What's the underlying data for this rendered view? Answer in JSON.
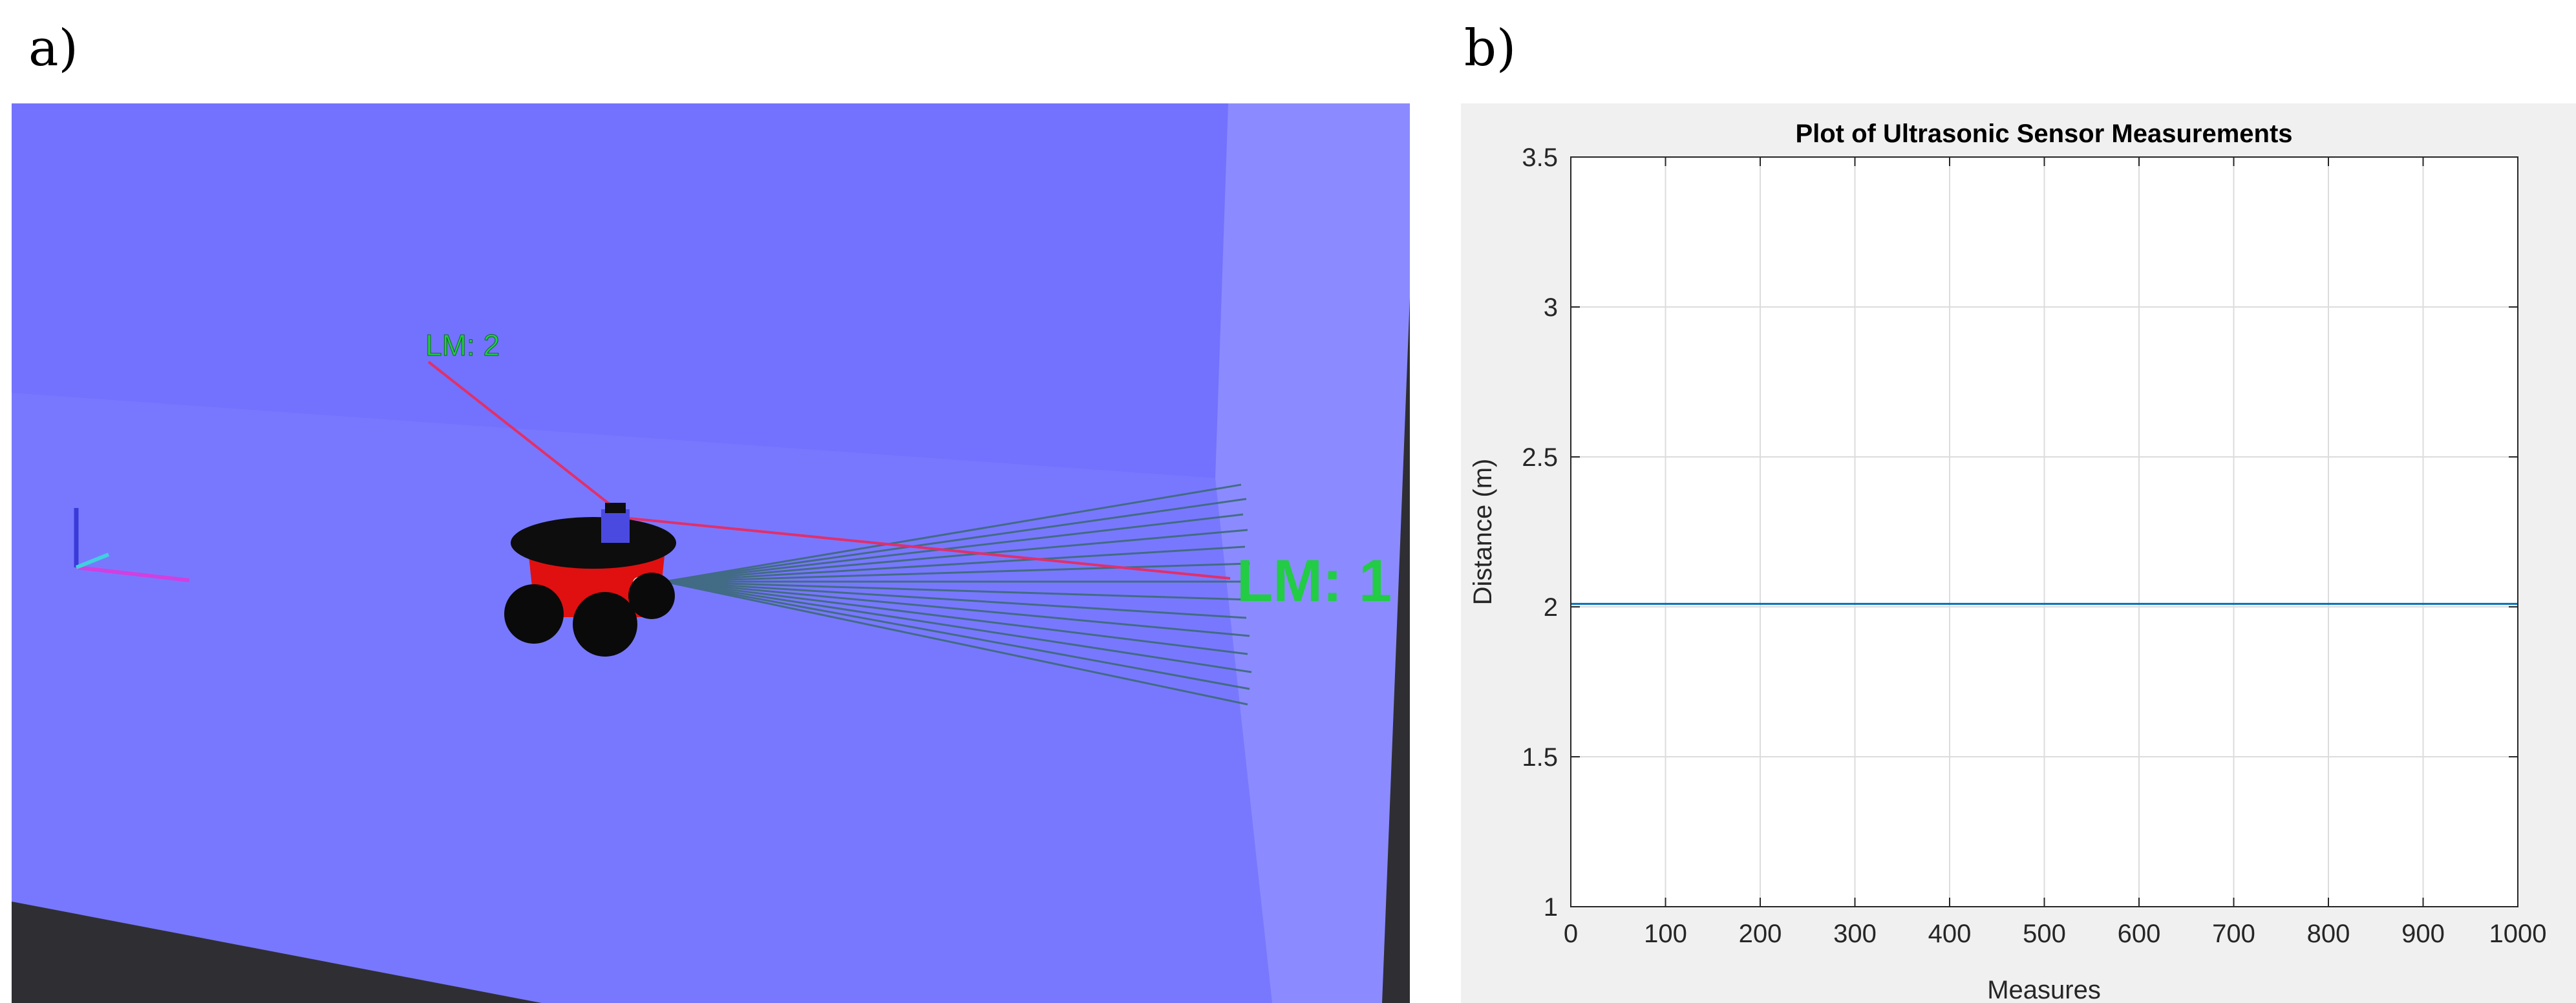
{
  "panels": {
    "a_label": "a)",
    "b_label": "b)"
  },
  "scene": {
    "landmark_labels": [
      "LM: 2",
      "LM: 1"
    ],
    "colors": {
      "floor": "#7777ff",
      "wall_back": "#7272fe",
      "wall_right": "#8b8bff",
      "ground_dark": "#2f2f33",
      "robot_body": "#e01010",
      "robot_top": "#0d0d0d",
      "wheel": "#0a0a0a",
      "lidar": "#4a4ae0",
      "laser_rays": "#3d6a78",
      "landmark_rays": "#e0306a",
      "landmark_text": "#22cc44"
    }
  },
  "chart_data": {
    "type": "line",
    "title": "Plot of Ultrasonic Sensor Measurements",
    "xlabel": "Measures",
    "ylabel": "Distance (m)",
    "xlim": [
      0,
      1000
    ],
    "ylim": [
      1,
      3.5
    ],
    "xticks": [
      0,
      100,
      200,
      300,
      400,
      500,
      600,
      700,
      800,
      900,
      1000
    ],
    "yticks": [
      1,
      1.5,
      2,
      2.5,
      3,
      3.5
    ],
    "xtick_labels": [
      "0",
      "100",
      "200",
      "300",
      "400",
      "500",
      "600",
      "700",
      "800",
      "900",
      "1000"
    ],
    "ytick_labels": [
      "1",
      "1.5",
      "2",
      "2.5",
      "3",
      "3.5"
    ],
    "grid": true,
    "series": [
      {
        "x": [
          0,
          1000
        ],
        "y": [
          2.01,
          2.01
        ],
        "color": "#0072bd"
      }
    ]
  }
}
